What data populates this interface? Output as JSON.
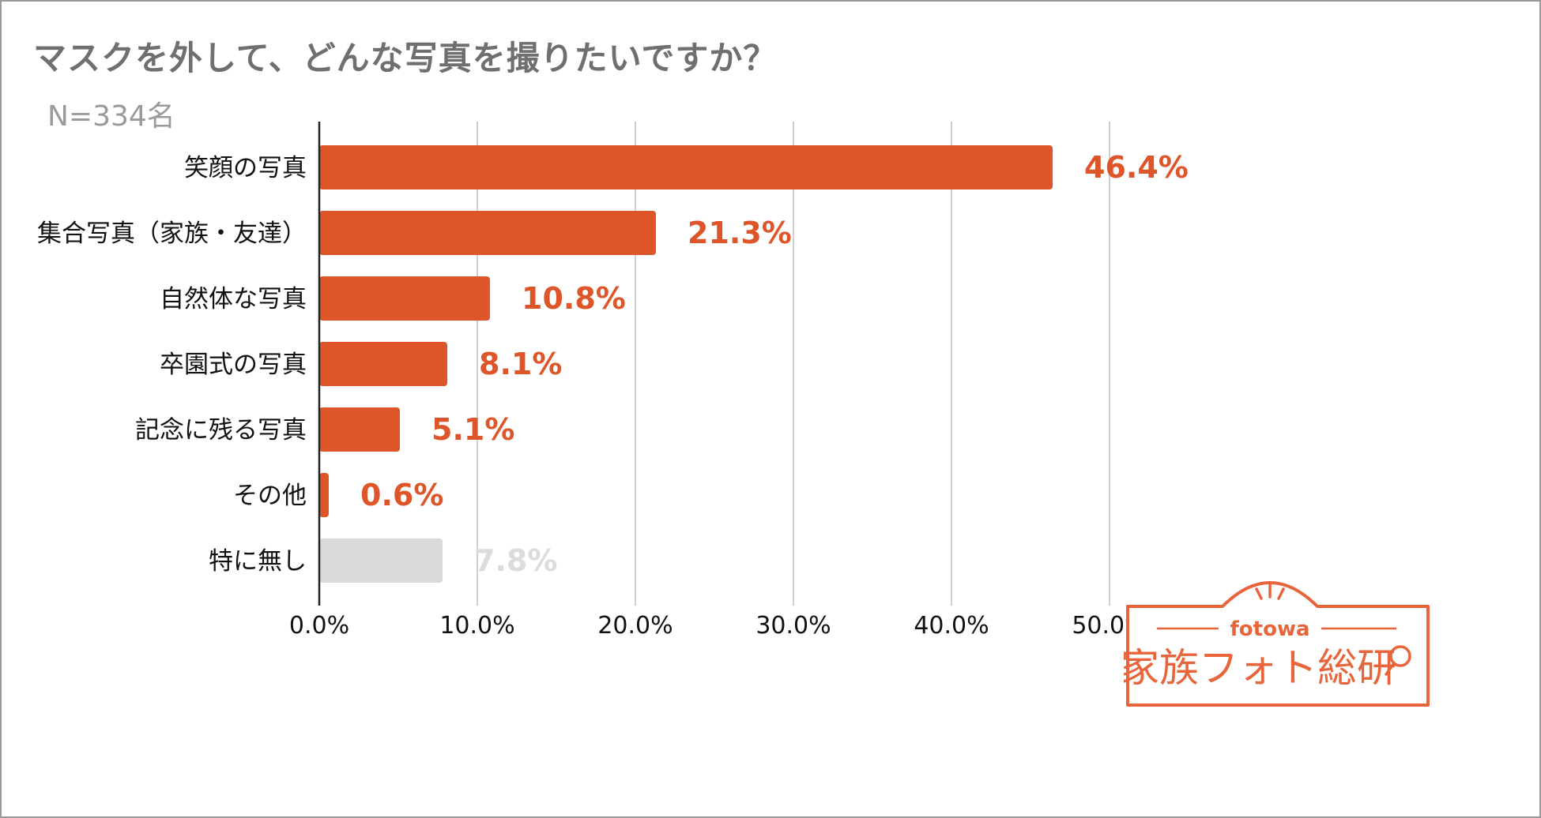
{
  "title": "マスクを外して、どんな写真を撮りたいですか？",
  "subtitle": "N=334名",
  "chart_data": {
    "type": "bar",
    "orientation": "horizontal",
    "title": "マスクを外して、どんな写真を撮りたいですか？",
    "subtitle": "N=334名",
    "categories": [
      "笑顔の写真",
      "集合写真（家族・友達）",
      "自然体な写真",
      "卒園式の写真",
      "記念に残る写真",
      "その他",
      "特に無し"
    ],
    "values": [
      46.4,
      21.3,
      10.8,
      8.1,
      5.1,
      0.6,
      7.8
    ],
    "value_labels": [
      "46.4%",
      "21.3%",
      "10.8%",
      "8.1%",
      "5.1%",
      "0.6%",
      "7.8%"
    ],
    "bar_colors": [
      "#dd5528",
      "#dd5528",
      "#dd5528",
      "#dd5528",
      "#dd5528",
      "#dd5528",
      "#d9d9d9"
    ],
    "label_colors": [
      "#dd5528",
      "#dd5528",
      "#dd5528",
      "#dd5528",
      "#dd5528",
      "#dd5528",
      "#dcdcdc"
    ],
    "xlim": [
      0,
      50
    ],
    "xticks": [
      0,
      10,
      20,
      30,
      40,
      50
    ],
    "xtick_labels": [
      "0.0%",
      "10.0%",
      "20.0%",
      "30.0%",
      "40.0%",
      "50.0%"
    ],
    "grid": true,
    "xlabel": "",
    "ylabel": ""
  },
  "logo": {
    "brand": "fotowa",
    "name": "家族フォト総研",
    "color": "#e8643a"
  }
}
